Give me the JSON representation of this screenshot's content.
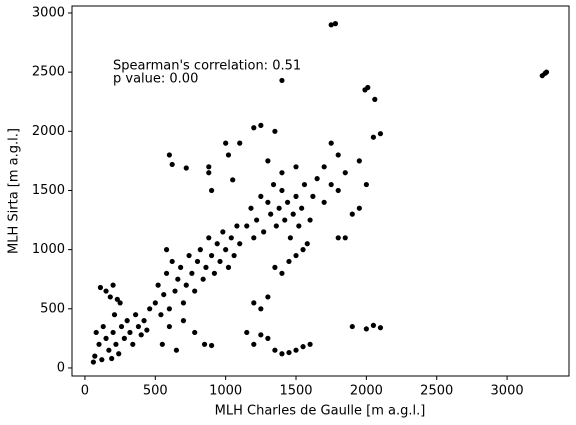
{
  "chart_data": {
    "type": "scatter",
    "xlabel": "MLH Charles de Gaulle [m a.g.l.]",
    "ylabel": "MLH Sirta [m a.g.l.]",
    "annotations": [
      "Spearman's correlation: 0.51",
      "p value: 0.00"
    ],
    "xlim": [
      -92,
      3440
    ],
    "ylim": [
      -68,
      3059
    ],
    "xticks": [
      0,
      500,
      1000,
      1500,
      2000,
      2500,
      3000
    ],
    "yticks": [
      0,
      500,
      1000,
      1500,
      2000,
      2500,
      3000
    ],
    "x": [
      60,
      70,
      80,
      100,
      120,
      130,
      150,
      170,
      190,
      200,
      210,
      220,
      240,
      260,
      280,
      300,
      320,
      340,
      360,
      380,
      400,
      420,
      440,
      460,
      110,
      150,
      180,
      200,
      230,
      250,
      500,
      520,
      540,
      560,
      580,
      600,
      620,
      640,
      660,
      680,
      700,
      720,
      740,
      760,
      780,
      800,
      820,
      840,
      860,
      880,
      900,
      920,
      940,
      960,
      980,
      1000,
      1020,
      1040,
      1060,
      1080,
      1100,
      550,
      600,
      650,
      700,
      780,
      850,
      900,
      580,
      600,
      620,
      720,
      880,
      900,
      880,
      1020,
      1000,
      1100,
      1150,
      1180,
      1200,
      1220,
      1250,
      1270,
      1300,
      1320,
      1340,
      1360,
      1380,
      1400,
      1420,
      1440,
      1460,
      1480,
      1500,
      1520,
      1540,
      1560,
      1580,
      1600,
      1620,
      1650,
      1700,
      1750,
      1800,
      1850,
      1900,
      1950,
      2000,
      2050,
      2100,
      1750,
      1800,
      1950,
      1300,
      1350,
      1250,
      1200,
      1400,
      1500,
      1700,
      1800,
      1850,
      1450,
      1500,
      1550,
      1400,
      1350,
      1300,
      1250,
      1200,
      1150,
      1200,
      1250,
      1300,
      1350,
      1400,
      1450,
      1500,
      1550,
      1600,
      1900,
      2000,
      2050,
      2100,
      1400,
      1750,
      1780,
      1990,
      2010,
      2060,
      3250,
      3270,
      3280,
      1050
    ],
    "series": [
      {
        "name": "points",
        "color": "#000000",
        "values": [
          50,
          100,
          300,
          200,
          70,
          350,
          250,
          150,
          80,
          300,
          450,
          200,
          120,
          350,
          250,
          400,
          300,
          200,
          450,
          350,
          280,
          400,
          320,
          500,
          680,
          650,
          600,
          700,
          580,
          550,
          550,
          700,
          450,
          620,
          800,
          500,
          900,
          650,
          750,
          850,
          550,
          700,
          950,
          800,
          650,
          900,
          1000,
          750,
          850,
          1100,
          950,
          800,
          1050,
          900,
          1150,
          1000,
          850,
          1100,
          950,
          1200,
          1050,
          200,
          350,
          150,
          400,
          300,
          200,
          190,
          1000,
          1800,
          1720,
          1690,
          1700,
          1500,
          1650,
          1800,
          1900,
          1900,
          1200,
          1350,
          1100,
          1250,
          1450,
          1150,
          1400,
          1300,
          1550,
          1200,
          1350,
          1500,
          1250,
          1400,
          1100,
          1300,
          1450,
          1200,
          1350,
          1550,
          1050,
          1250,
          1450,
          1600,
          1400,
          1550,
          1500,
          1650,
          1300,
          1350,
          1550,
          1950,
          1980,
          1900,
          1800,
          1750,
          1750,
          2000,
          2050,
          2030,
          1650,
          1700,
          1700,
          1100,
          1100,
          900,
          950,
          1000,
          800,
          850,
          600,
          500,
          550,
          300,
          200,
          280,
          250,
          150,
          120,
          130,
          150,
          180,
          200,
          350,
          330,
          360,
          340,
          2430,
          2900,
          2910,
          2350,
          2370,
          2270,
          2470,
          2490,
          2500,
          1590
        ]
      }
    ]
  }
}
